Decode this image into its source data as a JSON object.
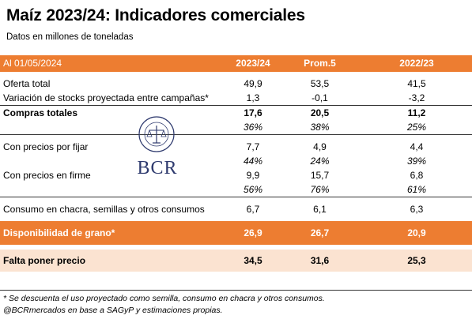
{
  "title": "Maíz 2023/24: Indicadores comerciales",
  "subtitle": "Datos en millones de toneladas",
  "header": {
    "label": "Al 01/05/2024",
    "col1": "2023/24",
    "col2": "Prom.5",
    "col3": "2022/23"
  },
  "rows": {
    "oferta": {
      "label": "Oferta total",
      "v1": "49,9",
      "v2": "53,5",
      "v3": "41,5"
    },
    "variacion": {
      "label": "Variación de stocks proyectada entre campañas*",
      "v1": "1,3",
      "v2": "-0,1",
      "v3": "-3,2"
    },
    "compras": {
      "label": "Compras totales",
      "v1": "17,6",
      "v2": "20,5",
      "v3": "11,2"
    },
    "compras_pct": {
      "v1": "36%",
      "v2": "38%",
      "v3": "25%"
    },
    "porfijar": {
      "label": "Con precios por fijar",
      "v1": "7,7",
      "v2": "4,9",
      "v3": "4,4"
    },
    "porfijar_pct": {
      "v1": "44%",
      "v2": "24%",
      "v3": "39%"
    },
    "firme": {
      "label": "Con precios en firme",
      "v1": "9,9",
      "v2": "15,7",
      "v3": "6,8"
    },
    "firme_pct": {
      "v1": "56%",
      "v2": "76%",
      "v3": "61%"
    },
    "consumo": {
      "label": "Consumo en chacra, semillas y otros consumos",
      "v1": "6,7",
      "v2": "6,1",
      "v3": "6,3"
    },
    "disponibilidad": {
      "label": "Disponibilidad de grano*",
      "v1": "26,9",
      "v2": "26,7",
      "v3": "20,9"
    },
    "falta": {
      "label": "Falta poner precio",
      "v1": "34,5",
      "v2": "31,6",
      "v3": "25,3"
    }
  },
  "logo": {
    "text": "BCR",
    "seal_text": "BOLSA DE COMERCIO DE ROSARIO",
    "brand_color": "#2e3a6e"
  },
  "footnotes": {
    "note1": "* Se descuenta el uso proyectado como semilla, consumo en chacra y otros consumos.",
    "note2": "@BCRmercados en base a SAGyP y estimaciones propias."
  },
  "colors": {
    "accent": "#ed7d31",
    "highlight": "#fbe3d1"
  }
}
